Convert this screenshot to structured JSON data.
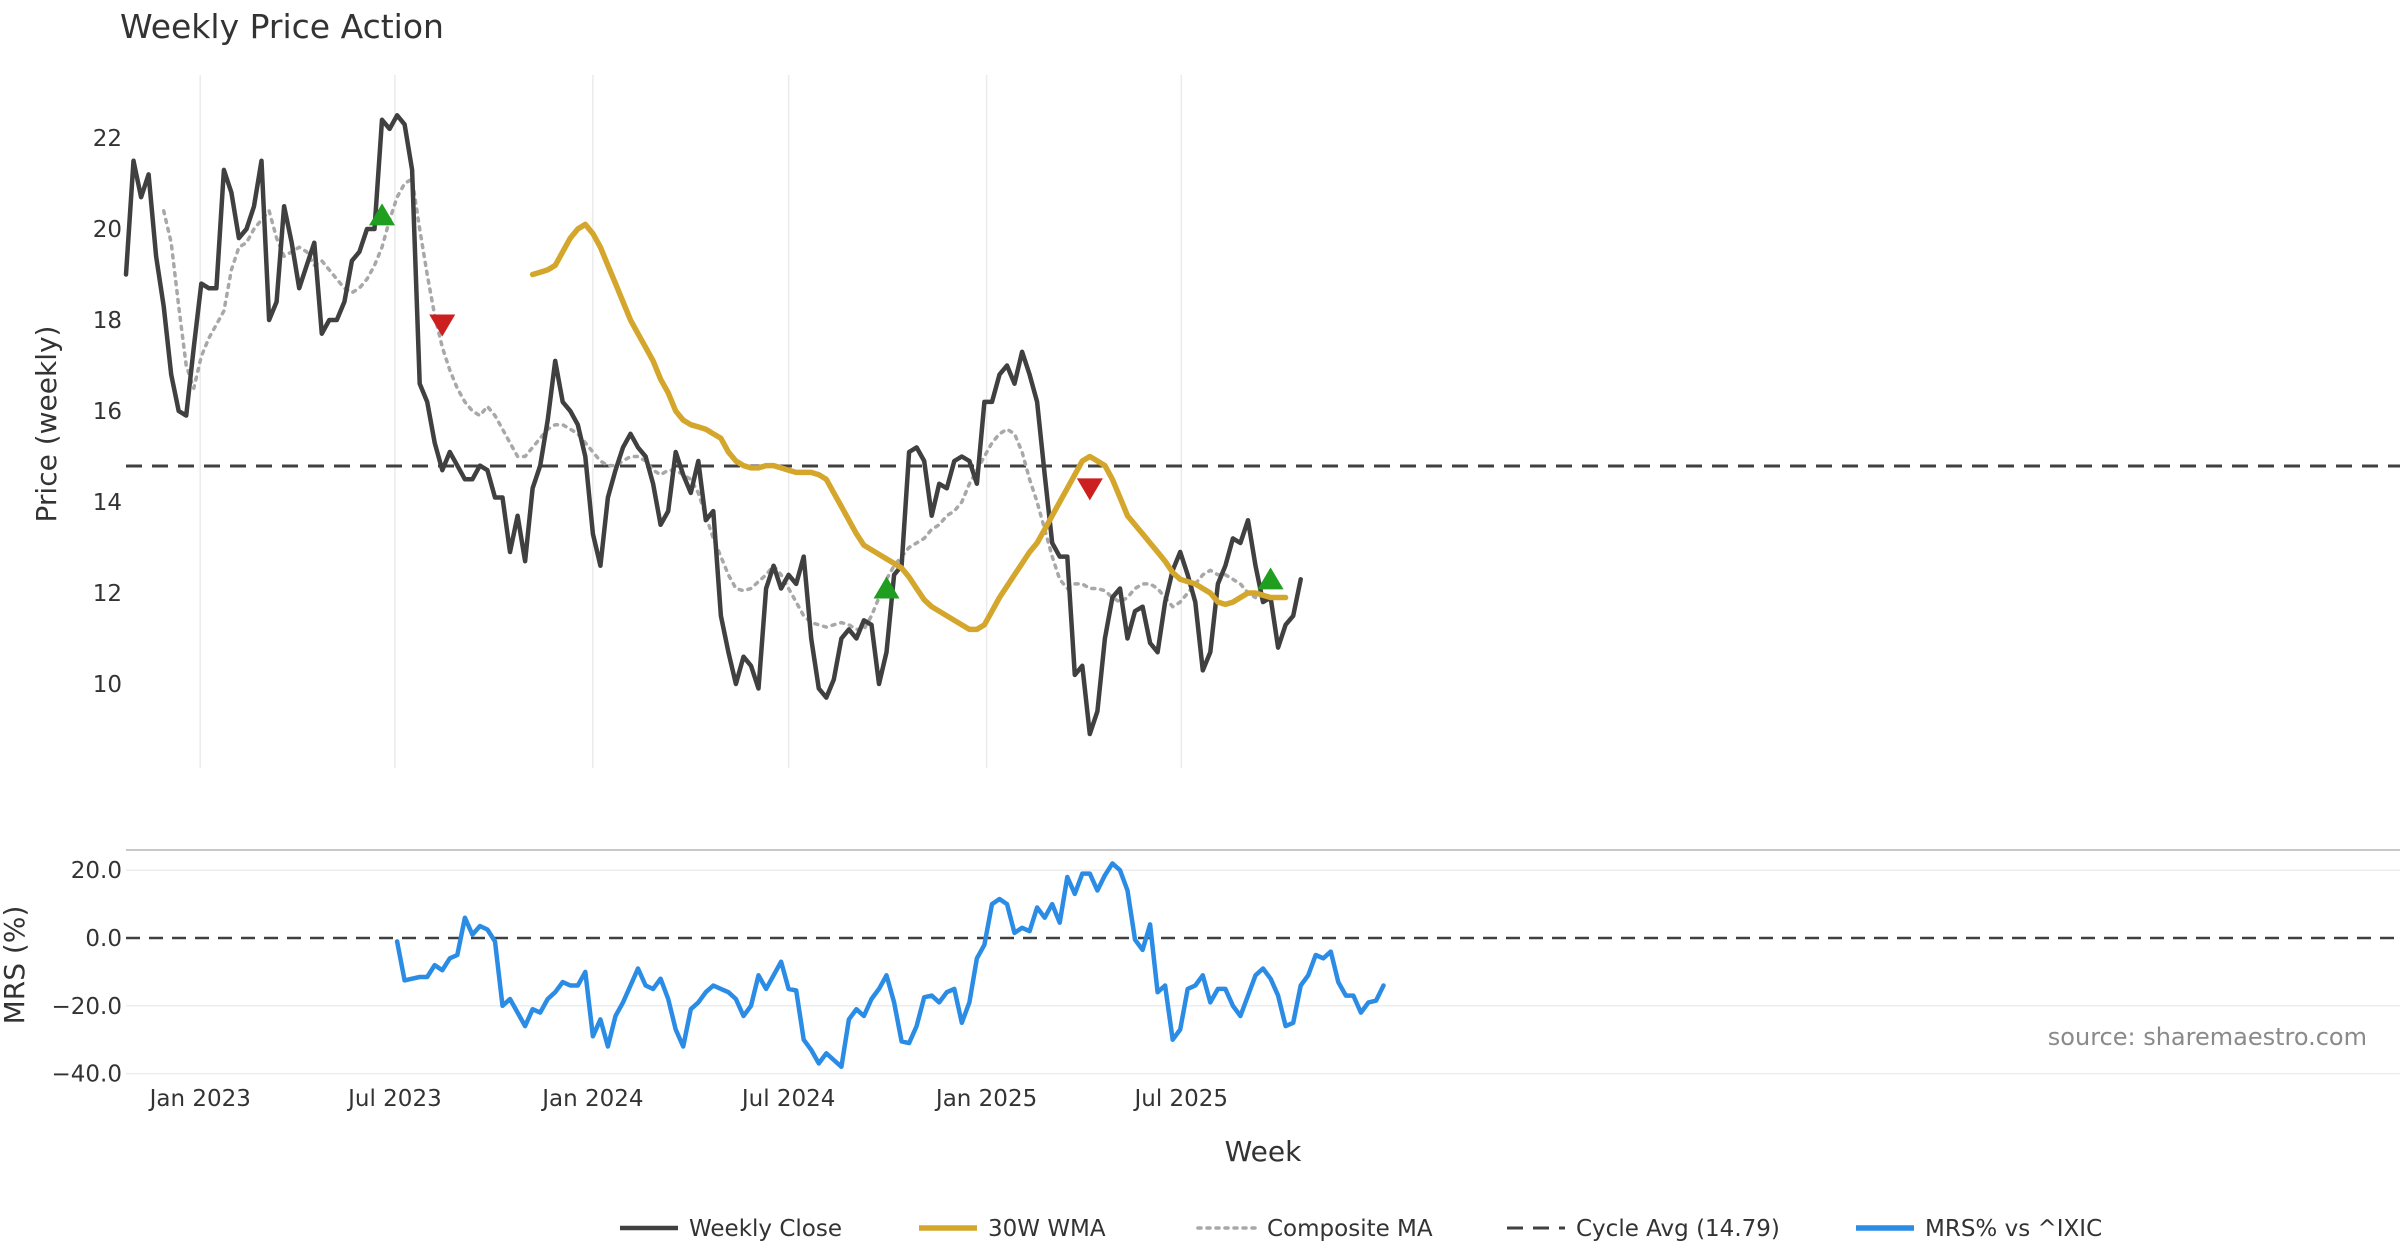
{
  "chart_data": {
    "type": "line",
    "title": "Weekly Price Action",
    "source": "source: sharemaestro.com",
    "xlabel": "Week",
    "x_ticks": [
      "Jan 2023",
      "Jul 2023",
      "Jan 2024",
      "Jul 2024",
      "Jan 2025",
      "Jul 2025"
    ],
    "x_start": "2022-10-24",
    "x_end": "2025-11-10",
    "price_panel": {
      "ylabel": "Price (weekly)",
      "yticks": [
        10,
        12,
        14,
        16,
        18,
        20,
        22
      ],
      "ylim": [
        8.2,
        23.5
      ],
      "cycle_avg": 14.79,
      "series": {
        "weekly_close": [
          19.0,
          21.5,
          20.7,
          21.2,
          19.4,
          18.3,
          16.8,
          16.0,
          15.9,
          17.4,
          18.8,
          18.7,
          18.7,
          21.3,
          20.8,
          19.8,
          20.0,
          20.5,
          21.5,
          18.0,
          18.4,
          20.5,
          19.7,
          18.7,
          19.2,
          19.7,
          17.7,
          18.0,
          18.0,
          18.4,
          19.3,
          19.5,
          20.0,
          20.0,
          22.4,
          22.2,
          22.5,
          22.3,
          21.3,
          16.6,
          16.2,
          15.3,
          14.7,
          15.1,
          14.8,
          14.5,
          14.5,
          14.8,
          14.7,
          14.1,
          14.1,
          12.9,
          13.7,
          12.7,
          14.3,
          14.8,
          15.8,
          17.1,
          16.2,
          16.0,
          15.7,
          15.0,
          13.3,
          12.6,
          14.1,
          14.7,
          15.2,
          15.5,
          15.2,
          15.0,
          14.4,
          13.5,
          13.8,
          15.1,
          14.6,
          14.2,
          14.9,
          13.6,
          13.8,
          11.5,
          10.7,
          10.0,
          10.6,
          10.4,
          9.9,
          12.1,
          12.6,
          12.1,
          12.4,
          12.2,
          12.8,
          11.0,
          9.9,
          9.7,
          10.1,
          11.0,
          11.2,
          11.0,
          11.4,
          11.3,
          10.0,
          10.7,
          12.4,
          12.6,
          15.1,
          15.2,
          14.9,
          13.7,
          14.4,
          14.3,
          14.9,
          15.0,
          14.9,
          14.4,
          16.2,
          16.2,
          16.8,
          17.0,
          16.6,
          17.3,
          16.8,
          16.2,
          14.6,
          13.1,
          12.8,
          12.8,
          10.2,
          10.4,
          8.9,
          9.4,
          11.0,
          11.9,
          12.1,
          11.0,
          11.6,
          11.7,
          10.9,
          10.7,
          11.8,
          12.5,
          12.9,
          12.4,
          11.8,
          10.3,
          10.7,
          12.2,
          12.6,
          13.2,
          13.1,
          13.6,
          12.6,
          11.8,
          11.9,
          10.8,
          11.3,
          11.5,
          12.3
        ],
        "wma_30w": [
          19.0,
          19.05,
          19.1,
          19.2,
          19.5,
          19.8,
          20.0,
          20.1,
          19.9,
          19.6,
          19.2,
          18.8,
          18.4,
          18.0,
          17.7,
          17.4,
          17.1,
          16.7,
          16.4,
          16.0,
          15.8,
          15.7,
          15.65,
          15.6,
          15.5,
          15.4,
          15.1,
          14.9,
          14.8,
          14.75,
          14.75,
          14.8,
          14.8,
          14.75,
          14.7,
          14.65,
          14.65,
          14.65,
          14.6,
          14.5,
          14.2,
          13.9,
          13.6,
          13.3,
          13.05,
          12.95,
          12.85,
          12.75,
          12.65,
          12.55,
          12.35,
          12.1,
          11.85,
          11.7,
          11.6,
          11.5,
          11.4,
          11.3,
          11.2,
          11.2,
          11.3,
          11.6,
          11.9,
          12.15,
          12.4,
          12.65,
          12.9,
          13.1,
          13.4,
          13.7,
          14.0,
          14.3,
          14.6,
          14.9,
          15.0,
          14.9,
          14.8,
          14.5,
          14.1,
          13.7,
          13.5,
          13.3,
          13.1,
          12.9,
          12.7,
          12.45,
          12.3,
          12.25,
          12.2,
          12.1,
          12.0,
          11.8,
          11.75,
          11.8,
          11.9,
          12.0,
          12.0,
          11.95,
          11.9,
          11.9,
          11.9
        ],
        "wma_start_index": 54,
        "composite_ma": [
          20.4,
          19.7,
          18.3,
          17.0,
          16.5,
          17.2,
          17.6,
          17.9,
          18.2,
          19.1,
          19.6,
          19.7,
          20.0,
          20.2,
          20.4,
          19.8,
          19.4,
          19.5,
          19.6,
          19.5,
          19.2,
          19.3,
          19.1,
          18.9,
          18.7,
          18.6,
          18.7,
          18.9,
          19.2,
          19.6,
          20.2,
          20.7,
          21.0,
          21.1,
          20.0,
          19.0,
          18.1,
          17.4,
          16.9,
          16.5,
          16.2,
          16.0,
          15.9,
          16.1,
          15.9,
          15.6,
          15.3,
          15.0,
          15.0,
          15.2,
          15.4,
          15.6,
          15.7,
          15.7,
          15.6,
          15.5,
          15.3,
          15.1,
          14.9,
          14.8,
          14.8,
          14.9,
          15.0,
          15.0,
          14.9,
          14.7,
          14.6,
          14.7,
          14.7,
          14.6,
          14.5,
          14.2,
          13.7,
          13.2,
          12.8,
          12.4,
          12.1,
          12.05,
          12.1,
          12.25,
          12.4,
          12.6,
          12.4,
          12.1,
          11.8,
          11.5,
          11.35,
          11.3,
          11.25,
          11.3,
          11.35,
          11.3,
          11.2,
          11.2,
          11.5,
          11.9,
          12.3,
          12.6,
          12.8,
          13.0,
          13.1,
          13.2,
          13.4,
          13.5,
          13.7,
          13.8,
          14.0,
          14.4,
          14.7,
          15.0,
          15.3,
          15.5,
          15.6,
          15.5,
          15.1,
          14.5,
          14.0,
          13.4,
          12.8,
          12.3,
          12.1,
          12.2,
          12.2,
          12.1,
          12.1,
          12.05,
          11.9,
          11.8,
          11.9,
          12.1,
          12.2,
          12.2,
          12.1,
          11.9,
          11.7,
          11.8,
          12.0,
          12.2,
          12.4,
          12.5,
          12.4,
          12.4,
          12.3,
          12.2,
          12.0,
          11.9
        ],
        "composite_start_index": 5
      },
      "signals": [
        {
          "type": "buy",
          "week_index": 34,
          "value": 20.3
        },
        {
          "type": "sell",
          "week_index": 42,
          "value": 17.9
        },
        {
          "type": "buy",
          "week_index": 101,
          "value": 12.1
        },
        {
          "type": "sell",
          "week_index": 128,
          "value": 14.3
        },
        {
          "type": "buy",
          "week_index": 152,
          "value": 12.3
        }
      ]
    },
    "mrs_panel": {
      "ylabel": "MRS (%)",
      "yticks": [
        -40.0,
        -20.0,
        0.0,
        20.0
      ],
      "ylim": [
        -40,
        26
      ],
      "zero_line": 0.0,
      "series_name": "MRS% vs ^IXIC",
      "start_index": 36,
      "values": [
        -1,
        -12.5,
        -12,
        -11.5,
        -11.5,
        -8,
        -9.5,
        -6,
        -5,
        6,
        1,
        3.5,
        2.5,
        -1,
        -20,
        -18,
        -22,
        -26,
        -21,
        -22,
        -18,
        -16,
        -13,
        -14,
        -14,
        -10,
        -29,
        -24,
        -32,
        -23,
        -19,
        -14,
        -9,
        -14,
        -15,
        -12,
        -18,
        -27,
        -32,
        -21,
        -19,
        -16,
        -14,
        -15,
        -16,
        -18,
        -23,
        -20,
        -11,
        -15,
        -11,
        -7,
        -15,
        -15.5,
        -30,
        -33,
        -37,
        -34,
        -36,
        -38,
        -24,
        -21,
        -23,
        -18,
        -15,
        -11,
        -19,
        -30.5,
        -31,
        -26,
        -17.5,
        -17,
        -19,
        -16,
        -15,
        -25,
        -19,
        -6,
        -2,
        10,
        11.5,
        10,
        1.5,
        3,
        2,
        9,
        6,
        10,
        4.5,
        18,
        13,
        19,
        19,
        14,
        18.5,
        22,
        20,
        14,
        -0.5,
        -3.5,
        4,
        -16,
        -14,
        -30,
        -27,
        -15,
        -14,
        -11,
        -19,
        -15,
        -15,
        -20,
        -23,
        -17,
        -11,
        -9,
        -12,
        -17,
        -26,
        -25,
        -14,
        -11,
        -5,
        -6,
        -4,
        -13,
        -17,
        -17,
        -22,
        -19,
        -18.5,
        -14
      ]
    },
    "legend": {
      "position": "bottom-center",
      "items": [
        {
          "label": "Weekly Close",
          "color": "#404040",
          "style": "solid"
        },
        {
          "label": "30W WMA",
          "color": "#d4a72c",
          "style": "solid"
        },
        {
          "label": "Composite MA",
          "color": "#a8a8a8",
          "style": "dotted"
        },
        {
          "label": "Cycle Avg (14.79)",
          "color": "#404040",
          "style": "dashed"
        },
        {
          "label": "MRS% vs ^IXIC",
          "color": "#2b8ce6",
          "style": "solid"
        }
      ]
    },
    "colors": {
      "close": "#404040",
      "wma": "#d4a72c",
      "composite": "#a8a8a8",
      "cycle": "#404040",
      "mrs": "#2b8ce6",
      "buy": "#1f9e1f",
      "sell": "#cc1f1f"
    }
  }
}
